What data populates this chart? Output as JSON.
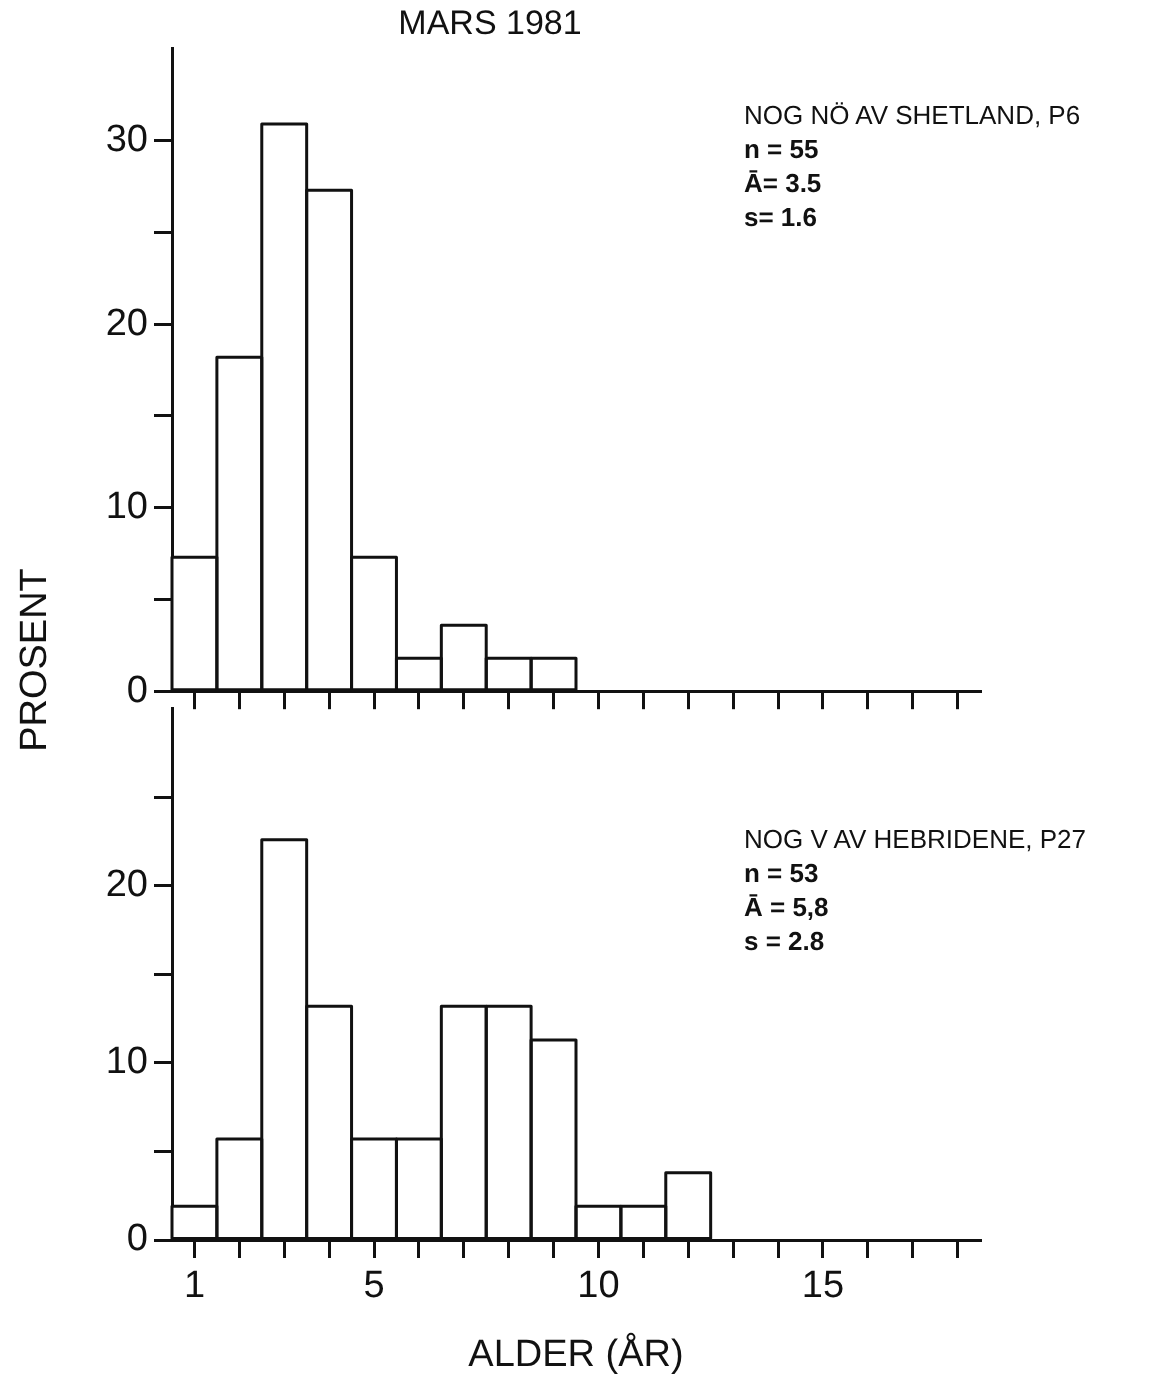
{
  "chart_data": [
    {
      "type": "histogram",
      "title": "MARS 1981",
      "ylabel": "PROSENT",
      "bins": [
        0.5,
        1.5,
        2.5,
        3.5,
        4.5,
        5.5,
        6.5,
        7.5,
        8.5,
        9.5
      ],
      "values": [
        7.3,
        18.2,
        30.9,
        27.3,
        7.3,
        1.8,
        3.6,
        1.8,
        1.8
      ],
      "xlim": [
        0.5,
        18.5
      ],
      "xticks": [
        1,
        {
          "value": 2,
          "label": null
        },
        {
          "value": 3,
          "label": null
        },
        {
          "value": 4,
          "label": null
        },
        5,
        {
          "value": 6,
          "label": null
        },
        {
          "value": 7,
          "label": null
        },
        {
          "value": 8,
          "label": null
        },
        {
          "value": 9,
          "label": null
        },
        10,
        {
          "value": 11,
          "label": null
        },
        {
          "value": 12,
          "label": null
        },
        {
          "value": 13,
          "label": null
        },
        {
          "value": 14,
          "label": null
        },
        15,
        {
          "value": 16,
          "label": null
        },
        {
          "value": 17,
          "label": null
        },
        {
          "value": 18,
          "label": null
        }
      ],
      "ylim": [
        0,
        35
      ],
      "yticks": [
        0,
        {
          "value": 5,
          "label": null
        },
        10,
        {
          "value": 15,
          "label": null
        },
        20,
        {
          "value": 25,
          "label": null
        },
        30
      ],
      "tick_labels": "y",
      "grid": false,
      "legend": false,
      "annotations": [
        "NOG NÖ AV SHETLAND, P6",
        "n = 55",
        "Ā= 3.5",
        "s= 1.6"
      ]
    },
    {
      "type": "histogram",
      "xlabel": "ALDER (ÅR)",
      "bins": [
        0.5,
        1.5,
        2.5,
        3.5,
        4.5,
        5.5,
        6.5,
        7.5,
        8.5,
        9.5,
        10.5,
        11.5,
        12.5
      ],
      "values": [
        1.9,
        5.7,
        22.6,
        13.2,
        5.7,
        5.7,
        13.2,
        13.2,
        11.3,
        1.9,
        1.9,
        3.8
      ],
      "xlim": [
        0.5,
        18.5
      ],
      "xticks": [
        1,
        {
          "value": 2,
          "label": null
        },
        {
          "value": 3,
          "label": null
        },
        {
          "value": 4,
          "label": null
        },
        5,
        {
          "value": 6,
          "label": null
        },
        {
          "value": 7,
          "label": null
        },
        {
          "value": 8,
          "label": null
        },
        {
          "value": 9,
          "label": null
        },
        10,
        {
          "value": 11,
          "label": null
        },
        {
          "value": 12,
          "label": null
        },
        {
          "value": 13,
          "label": null
        },
        {
          "value": 14,
          "label": null
        },
        15,
        {
          "value": 16,
          "label": null
        },
        {
          "value": 17,
          "label": null
        },
        {
          "value": 18,
          "label": null
        }
      ],
      "ylim": [
        0,
        30
      ],
      "yticks": [
        0,
        {
          "value": 5,
          "label": null
        },
        10,
        {
          "value": 15,
          "label": null
        },
        20,
        {
          "value": 25,
          "label": null
        }
      ],
      "grid": false,
      "legend": false,
      "annotations": [
        "NOG V AV HEBRIDENE, P27",
        "n = 53",
        "Ā = 5,8",
        "s = 2.8"
      ]
    }
  ]
}
